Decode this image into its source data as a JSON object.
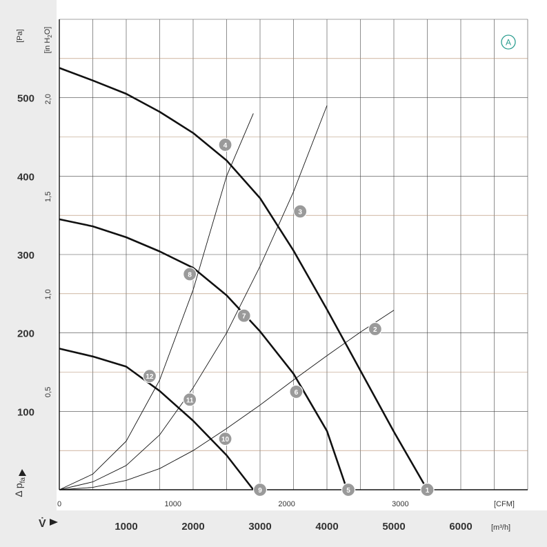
{
  "chart_data": {
    "type": "line",
    "badge": "A",
    "y_axis_left": {
      "unit": "[Pa]",
      "label": "Δ p",
      "label_sub": "fa",
      "ylim": [
        0,
        600
      ],
      "ticks": [
        100,
        200,
        300,
        400,
        500
      ]
    },
    "y_axis_inner": {
      "unit": "[in H",
      "unit_sub": "2",
      "unit_end": "O]",
      "ticks": [
        "0,5",
        "1,0",
        "1,5",
        "2,0"
      ],
      "tick_values": [
        0.5,
        1.0,
        1.5,
        2.0
      ]
    },
    "x_axis_cfm": {
      "unit": "[CFM]",
      "ticks": [
        0,
        1000,
        2000,
        3000
      ]
    },
    "x_axis_m3h": {
      "label": "V̇",
      "unit": "[m³/h]",
      "ticks": [
        1000,
        2000,
        3000,
        4000,
        5000,
        6000
      ],
      "xlim": [
        0,
        7000
      ]
    },
    "series": [
      {
        "type": "fan_curve",
        "points": [
          [
            0,
            538
          ],
          [
            500,
            522
          ],
          [
            1000,
            505
          ],
          [
            1500,
            482
          ],
          [
            2000,
            455
          ],
          [
            2500,
            420
          ],
          [
            3000,
            372
          ],
          [
            3500,
            305
          ],
          [
            4000,
            230
          ],
          [
            4500,
            152
          ],
          [
            5000,
            74
          ],
          [
            5500,
            0
          ]
        ]
      },
      {
        "type": "fan_curve",
        "points": [
          [
            0,
            345
          ],
          [
            500,
            336
          ],
          [
            1000,
            322
          ],
          [
            1500,
            304
          ],
          [
            2000,
            283
          ],
          [
            2500,
            248
          ],
          [
            3000,
            202
          ],
          [
            3500,
            148
          ],
          [
            4000,
            75
          ],
          [
            4300,
            0
          ]
        ]
      },
      {
        "type": "fan_curve",
        "points": [
          [
            0,
            180
          ],
          [
            500,
            170
          ],
          [
            1000,
            157
          ],
          [
            1500,
            126
          ],
          [
            2000,
            88
          ],
          [
            2500,
            44
          ],
          [
            2900,
            0
          ]
        ]
      },
      {
        "type": "system_curve",
        "points": [
          [
            0,
            0
          ],
          [
            500,
            20
          ],
          [
            1000,
            62
          ],
          [
            1500,
            140
          ],
          [
            2000,
            255
          ],
          [
            2500,
            400
          ],
          [
            2900,
            480
          ]
        ]
      },
      {
        "type": "system_curve",
        "points": [
          [
            0,
            0
          ],
          [
            500,
            10
          ],
          [
            1000,
            31
          ],
          [
            1500,
            70
          ],
          [
            2000,
            130
          ],
          [
            2500,
            200
          ],
          [
            3000,
            285
          ],
          [
            3500,
            380
          ],
          [
            4000,
            490
          ]
        ]
      },
      {
        "type": "system_curve",
        "points": [
          [
            0,
            0
          ],
          [
            500,
            3
          ],
          [
            1000,
            12
          ],
          [
            1500,
            27
          ],
          [
            2000,
            50
          ],
          [
            2500,
            78
          ],
          [
            3000,
            108
          ],
          [
            3500,
            140
          ],
          [
            4000,
            171
          ],
          [
            4500,
            201
          ],
          [
            5000,
            229
          ]
        ]
      }
    ],
    "operating_points": [
      {
        "label": "1",
        "x": 5500,
        "y": 0
      },
      {
        "label": "2",
        "x": 4720,
        "y": 205
      },
      {
        "label": "3",
        "x": 3600,
        "y": 355
      },
      {
        "label": "4",
        "x": 2480,
        "y": 440
      },
      {
        "label": "5",
        "x": 4320,
        "y": 0
      },
      {
        "label": "6",
        "x": 3540,
        "y": 125
      },
      {
        "label": "7",
        "x": 2760,
        "y": 222
      },
      {
        "label": "8",
        "x": 1950,
        "y": 275
      },
      {
        "label": "9",
        "x": 3000,
        "y": 0
      },
      {
        "label": "10",
        "x": 2480,
        "y": 65
      },
      {
        "label": "11",
        "x": 1950,
        "y": 115
      },
      {
        "label": "12",
        "x": 1350,
        "y": 145
      }
    ]
  }
}
